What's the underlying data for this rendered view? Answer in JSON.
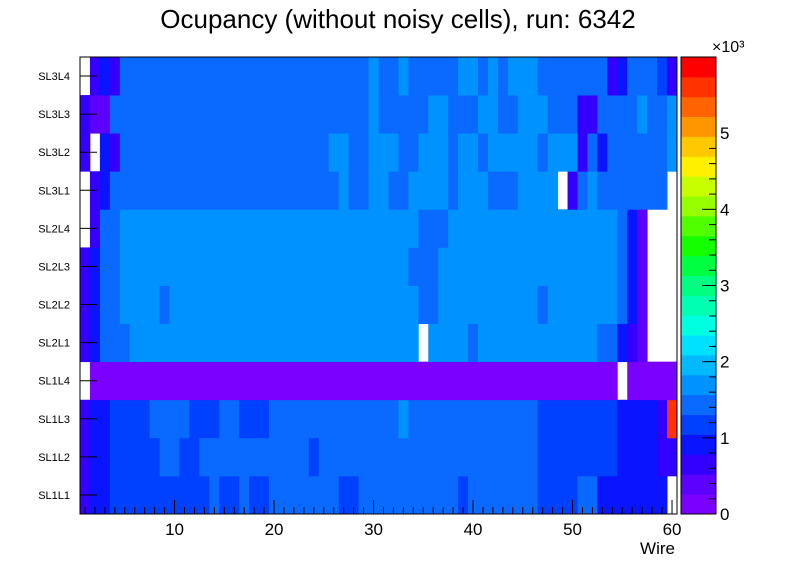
{
  "chart_data": {
    "type": "heatmap",
    "title": "Ocupancy (without noisy cells), run: 6342",
    "xlabel": "Wire",
    "ylabel": "",
    "x_range": [
      0.5,
      60.5
    ],
    "x_ticks": [
      10,
      20,
      30,
      40,
      50,
      60
    ],
    "y_categories": [
      "SL1L1",
      "SL1L2",
      "SL1L3",
      "SL1L4",
      "SL2L1",
      "SL2L2",
      "SL2L3",
      "SL2L4",
      "SL3L1",
      "SL3L2",
      "SL3L3",
      "SL3L4"
    ],
    "z_range": [
      0,
      6000
    ],
    "z_ticks": [
      0,
      1,
      2,
      3,
      4,
      5
    ],
    "z_exponent_label": "×10³",
    "palette": [
      "#7a00ff",
      "#5c00ff",
      "#3300ff",
      "#0a14ff",
      "#0041ff",
      "#0a6aff",
      "#0093ff",
      "#00b9ff",
      "#00e0ff",
      "#00ffe0",
      "#00ffb0",
      "#00ff80",
      "#00ff40",
      "#14ff00",
      "#50ff00",
      "#96ff00",
      "#c8ff00",
      "#fff000",
      "#ffc800",
      "#ff9600",
      "#ff6400",
      "#ff3200",
      "#ff0000"
    ],
    "rows": [
      {
        "label": "SL1L1",
        "segments": [
          [
            1,
            1,
            650
          ],
          [
            2,
            3,
            900
          ],
          [
            4,
            13,
            1050
          ],
          [
            14,
            14,
            1350
          ],
          [
            15,
            16,
            1050
          ],
          [
            17,
            17,
            1350
          ],
          [
            18,
            19,
            1050
          ],
          [
            20,
            26,
            1350
          ],
          [
            27,
            28,
            1050
          ],
          [
            29,
            38,
            1350
          ],
          [
            39,
            39,
            1050
          ],
          [
            40,
            46,
            1350
          ],
          [
            47,
            50,
            1050
          ],
          [
            51,
            52,
            1350
          ],
          [
            53,
            59,
            850
          ],
          [
            60,
            60,
            0
          ]
        ]
      },
      {
        "label": "SL1L2",
        "segments": [
          [
            1,
            1,
            650
          ],
          [
            2,
            3,
            900
          ],
          [
            4,
            8,
            1050
          ],
          [
            9,
            10,
            1350
          ],
          [
            11,
            12,
            1050
          ],
          [
            13,
            23,
            1350
          ],
          [
            24,
            24,
            1050
          ],
          [
            25,
            46,
            1350
          ],
          [
            47,
            54,
            1050
          ],
          [
            55,
            58,
            850
          ],
          [
            59,
            60,
            650
          ]
        ]
      },
      {
        "label": "SL1L3",
        "segments": [
          [
            1,
            1,
            650
          ],
          [
            2,
            3,
            900
          ],
          [
            4,
            7,
            1050
          ],
          [
            8,
            11,
            1350
          ],
          [
            12,
            14,
            1050
          ],
          [
            15,
            16,
            1350
          ],
          [
            17,
            19,
            1050
          ],
          [
            20,
            32,
            1350
          ],
          [
            33,
            33,
            1650
          ],
          [
            34,
            46,
            1350
          ],
          [
            47,
            54,
            1050
          ],
          [
            55,
            58,
            850
          ],
          [
            59,
            59,
            650
          ],
          [
            60,
            60,
            5700
          ]
        ]
      },
      {
        "label": "SL1L4",
        "segments": [
          [
            1,
            1,
            0
          ],
          [
            2,
            54,
            250
          ],
          [
            55,
            55,
            0
          ],
          [
            56,
            60,
            250
          ]
        ]
      },
      {
        "label": "SL2L1",
        "segments": [
          [
            1,
            1,
            650
          ],
          [
            2,
            2,
            900
          ],
          [
            3,
            5,
            1350
          ],
          [
            6,
            34,
            1650
          ],
          [
            35,
            35,
            0
          ],
          [
            36,
            39,
            1650
          ],
          [
            40,
            40,
            1350
          ],
          [
            41,
            52,
            1650
          ],
          [
            53,
            54,
            1350
          ],
          [
            55,
            55,
            900
          ],
          [
            56,
            56,
            650
          ],
          [
            57,
            57,
            450
          ],
          [
            58,
            60,
            0
          ]
        ]
      },
      {
        "label": "SL2L2",
        "segments": [
          [
            1,
            1,
            650
          ],
          [
            2,
            2,
            900
          ],
          [
            3,
            4,
            1350
          ],
          [
            5,
            8,
            1650
          ],
          [
            9,
            9,
            1350
          ],
          [
            10,
            34,
            1650
          ],
          [
            35,
            36,
            1350
          ],
          [
            37,
            46,
            1650
          ],
          [
            47,
            47,
            1350
          ],
          [
            48,
            54,
            1650
          ],
          [
            55,
            55,
            1350
          ],
          [
            56,
            56,
            900
          ],
          [
            57,
            57,
            450
          ],
          [
            58,
            60,
            0
          ]
        ]
      },
      {
        "label": "SL2L3",
        "segments": [
          [
            1,
            1,
            650
          ],
          [
            2,
            2,
            900
          ],
          [
            3,
            4,
            1350
          ],
          [
            5,
            33,
            1650
          ],
          [
            34,
            36,
            1350
          ],
          [
            37,
            54,
            1650
          ],
          [
            55,
            55,
            1350
          ],
          [
            56,
            56,
            900
          ],
          [
            57,
            57,
            450
          ],
          [
            58,
            60,
            0
          ]
        ]
      },
      {
        "label": "SL2L4",
        "segments": [
          [
            1,
            1,
            0
          ],
          [
            2,
            2,
            650
          ],
          [
            3,
            4,
            1350
          ],
          [
            5,
            34,
            1650
          ],
          [
            35,
            37,
            1350
          ],
          [
            38,
            54,
            1650
          ],
          [
            55,
            55,
            1350
          ],
          [
            56,
            56,
            900
          ],
          [
            57,
            57,
            450
          ],
          [
            58,
            60,
            0
          ]
        ]
      },
      {
        "label": "SL3L1",
        "segments": [
          [
            1,
            1,
            0
          ],
          [
            2,
            2,
            650
          ],
          [
            3,
            3,
            900
          ],
          [
            4,
            26,
            1350
          ],
          [
            27,
            27,
            1650
          ],
          [
            28,
            29,
            1350
          ],
          [
            30,
            31,
            1650
          ],
          [
            32,
            33,
            1350
          ],
          [
            34,
            37,
            1650
          ],
          [
            38,
            38,
            1350
          ],
          [
            39,
            41,
            1650
          ],
          [
            42,
            44,
            1350
          ],
          [
            45,
            48,
            1650
          ],
          [
            49,
            49,
            0
          ],
          [
            50,
            50,
            650
          ],
          [
            51,
            51,
            1350
          ],
          [
            52,
            52,
            1650
          ],
          [
            53,
            59,
            1350
          ],
          [
            60,
            60,
            0
          ]
        ]
      },
      {
        "label": "SL3L2",
        "segments": [
          [
            1,
            1,
            650
          ],
          [
            2,
            2,
            0
          ],
          [
            3,
            3,
            900
          ],
          [
            4,
            4,
            650
          ],
          [
            5,
            25,
            1350
          ],
          [
            26,
            27,
            1650
          ],
          [
            28,
            29,
            1350
          ],
          [
            30,
            32,
            1650
          ],
          [
            33,
            34,
            1350
          ],
          [
            35,
            37,
            1650
          ],
          [
            38,
            38,
            1350
          ],
          [
            39,
            40,
            1650
          ],
          [
            41,
            41,
            1350
          ],
          [
            42,
            46,
            1650
          ],
          [
            47,
            47,
            1350
          ],
          [
            48,
            50,
            1650
          ],
          [
            51,
            51,
            650
          ],
          [
            52,
            52,
            1350
          ],
          [
            53,
            53,
            900
          ],
          [
            54,
            59,
            1350
          ],
          [
            60,
            60,
            1650
          ]
        ]
      },
      {
        "label": "SL3L3",
        "segments": [
          [
            1,
            1,
            650
          ],
          [
            2,
            3,
            450
          ],
          [
            4,
            29,
            1350
          ],
          [
            30,
            30,
            1650
          ],
          [
            31,
            35,
            1350
          ],
          [
            36,
            37,
            1650
          ],
          [
            38,
            40,
            1350
          ],
          [
            41,
            42,
            1650
          ],
          [
            43,
            44,
            1350
          ],
          [
            45,
            47,
            1650
          ],
          [
            48,
            50,
            1350
          ],
          [
            51,
            52,
            650
          ],
          [
            53,
            56,
            1350
          ],
          [
            57,
            57,
            1650
          ],
          [
            58,
            59,
            1350
          ],
          [
            60,
            60,
            1650
          ]
        ]
      },
      {
        "label": "SL3L4",
        "segments": [
          [
            1,
            1,
            0
          ],
          [
            2,
            2,
            650
          ],
          [
            3,
            3,
            900
          ],
          [
            4,
            4,
            650
          ],
          [
            5,
            29,
            1350
          ],
          [
            30,
            30,
            1650
          ],
          [
            31,
            32,
            1350
          ],
          [
            33,
            33,
            1650
          ],
          [
            34,
            38,
            1350
          ],
          [
            39,
            40,
            1650
          ],
          [
            41,
            41,
            1350
          ],
          [
            42,
            42,
            1650
          ],
          [
            43,
            43,
            1350
          ],
          [
            44,
            46,
            1650
          ],
          [
            47,
            53,
            1350
          ],
          [
            54,
            54,
            650
          ],
          [
            55,
            55,
            900
          ],
          [
            56,
            58,
            1350
          ],
          [
            59,
            59,
            1050
          ],
          [
            60,
            60,
            650
          ]
        ]
      }
    ]
  }
}
